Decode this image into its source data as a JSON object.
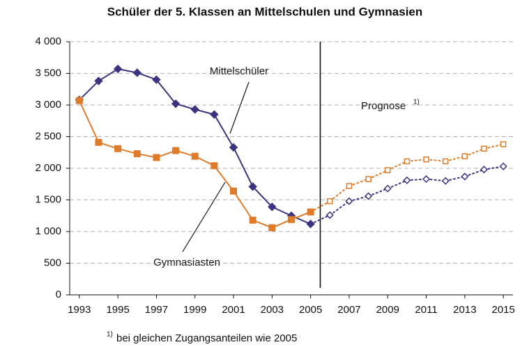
{
  "chart_data": {
    "type": "line",
    "title": "Schüler der 5. Klassen an Mittelschulen und Gymnasien",
    "x": [
      1993,
      1994,
      1995,
      1996,
      1997,
      1998,
      1999,
      2000,
      2001,
      2002,
      2003,
      2004,
      2005,
      2006,
      2007,
      2008,
      2009,
      2010,
      2011,
      2012,
      2013,
      2014,
      2015
    ],
    "series": [
      {
        "name": "Mittelschüler",
        "color": "#3b3480",
        "marker": "diamond",
        "values": [
          3080,
          3380,
          3570,
          3510,
          3400,
          3020,
          2930,
          2850,
          2330,
          1710,
          1390,
          1250,
          1120,
          1260,
          1480,
          1560,
          1680,
          1810,
          1830,
          1800,
          1870,
          1980,
          2030
        ]
      },
      {
        "name": "Gymnasiasten",
        "color": "#e07b2a",
        "marker": "square",
        "values": [
          3070,
          2410,
          2310,
          2230,
          2170,
          2280,
          2190,
          2040,
          1640,
          1180,
          1060,
          1190,
          1310,
          1480,
          1720,
          1830,
          1970,
          2110,
          2140,
          2110,
          2190,
          2310,
          2380
        ]
      }
    ],
    "forecast_from": 2006,
    "divider_x": 2005.5,
    "forecast_label": "Prognose",
    "forecast_label_note": "1)",
    "footnote_marker": "1)",
    "footnote": "bei gleichen Zugangsanteilen wie 2005",
    "xlim": [
      1992.5,
      2015.5
    ],
    "xticks": [
      1993,
      1995,
      1997,
      1999,
      2001,
      2003,
      2005,
      2007,
      2009,
      2011,
      2013,
      2015
    ],
    "ylim": [
      0,
      4000
    ],
    "yticks": [
      0,
      500,
      {
        "value": 1000,
        "label": "1 000"
      },
      {
        "value": 1500,
        "label": "1 500"
      },
      {
        "value": 2000,
        "label": "2 000"
      },
      {
        "value": 2500,
        "label": "2 500"
      },
      {
        "value": 3000,
        "label": "3 000"
      },
      {
        "value": 3500,
        "label": "3 500"
      },
      {
        "value": 4000,
        "label": "4 000"
      }
    ],
    "grid": true
  }
}
